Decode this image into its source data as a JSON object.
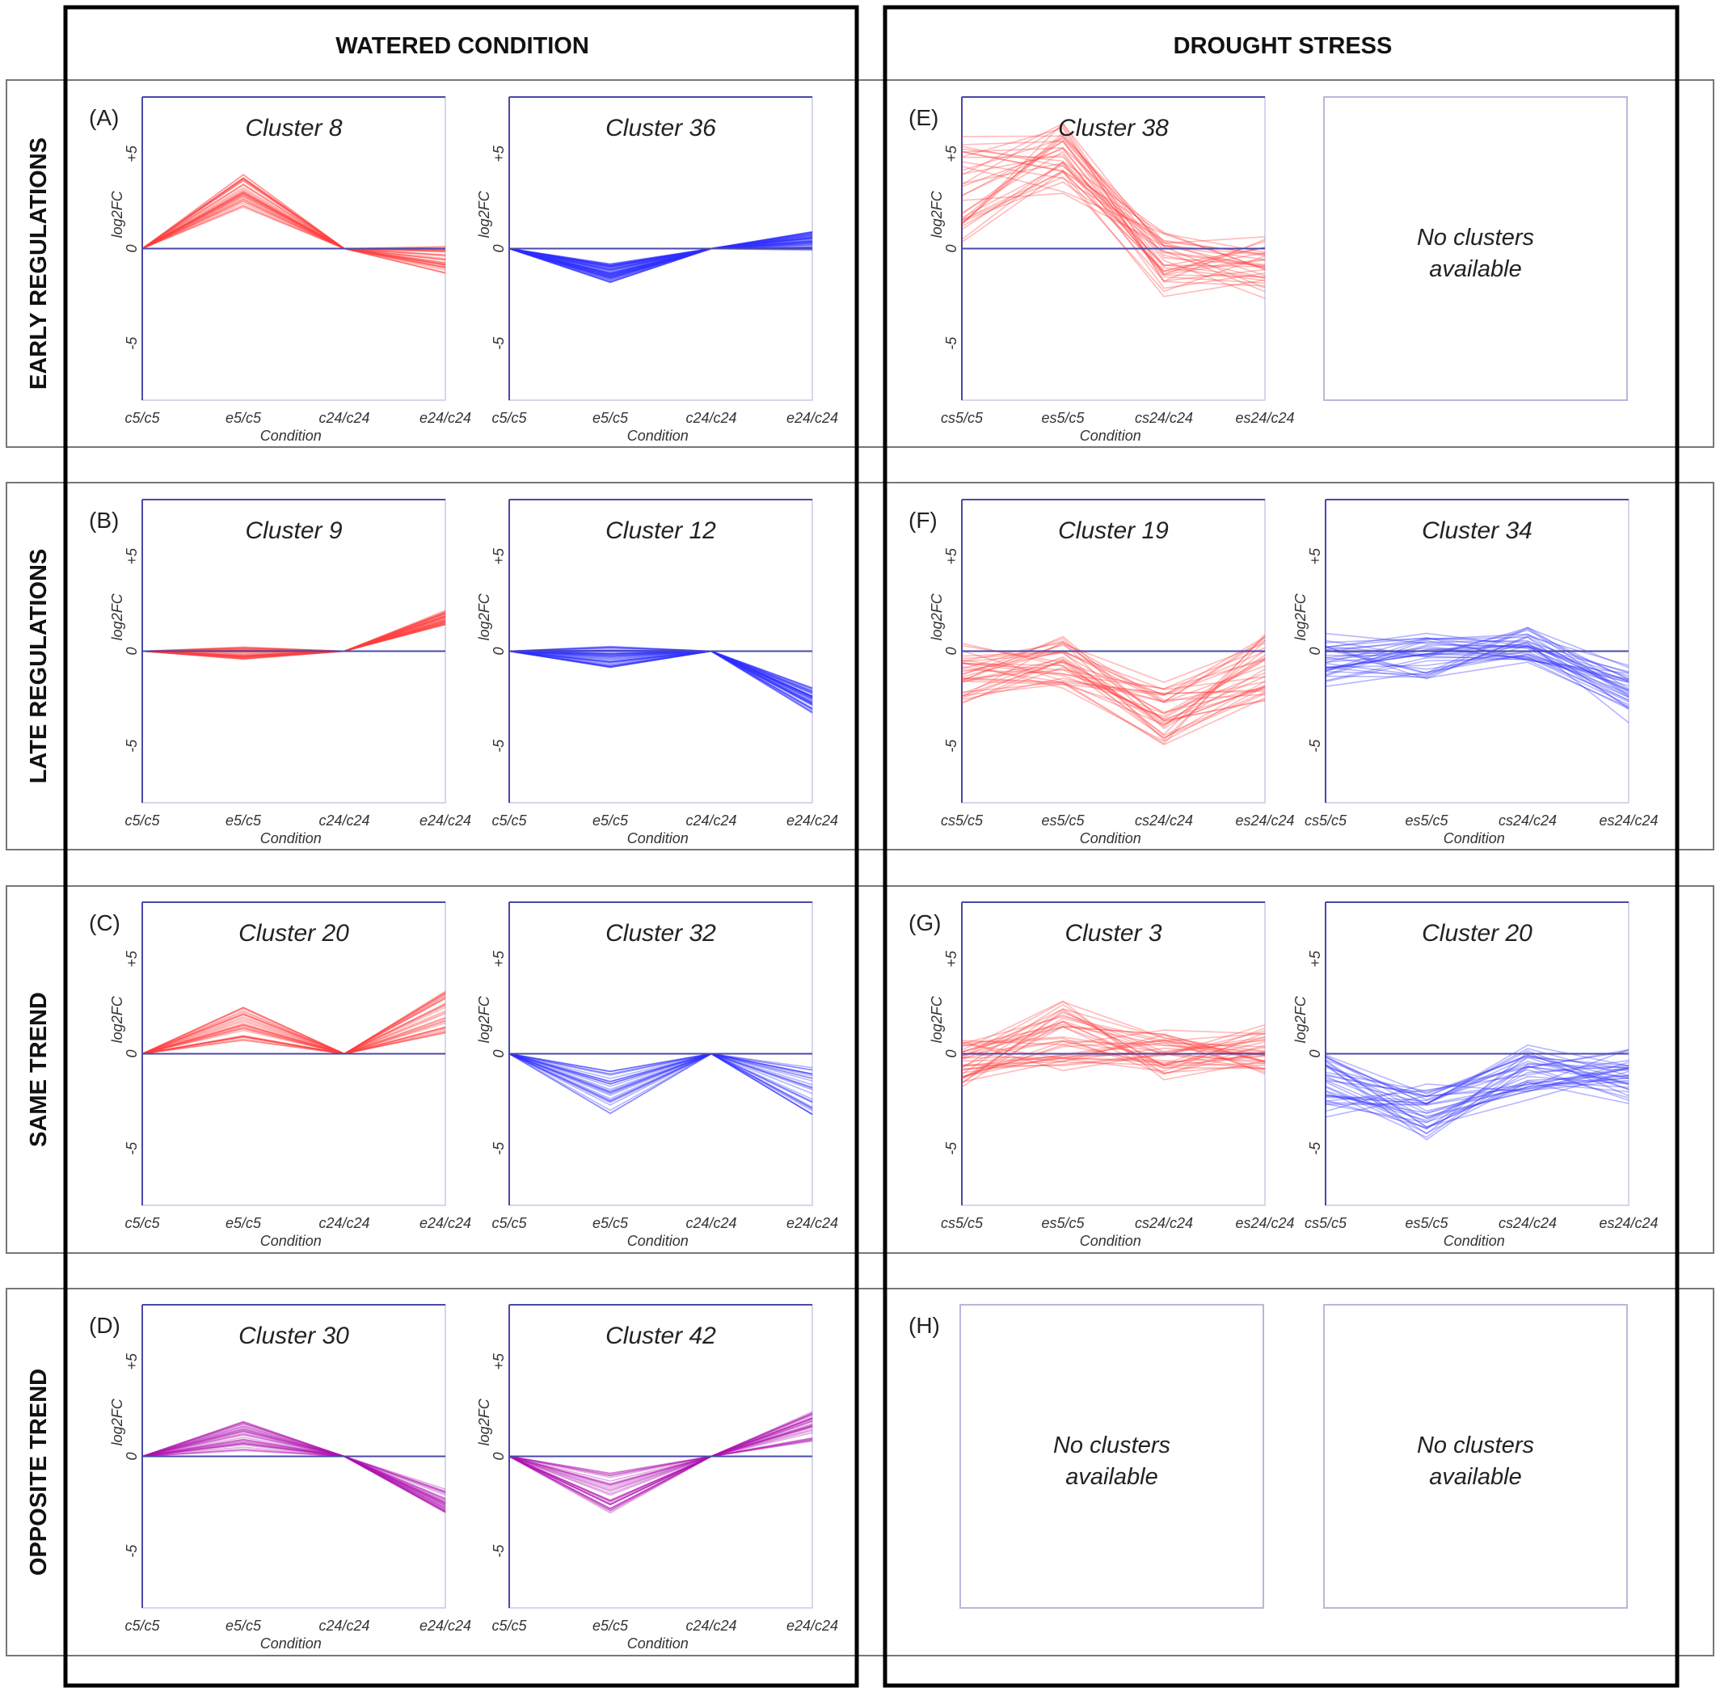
{
  "columns": [
    "WATERED CONDITION",
    "DROUGHT STRESS"
  ],
  "rows": [
    "EARLY REGULATIONS",
    "LATE REGULATIONS",
    "SAME TREND",
    "OPPOSITE TREND"
  ],
  "no_clusters_text": [
    "No clusters",
    "available"
  ],
  "y_axis_label": "log2FC",
  "x_axis_label": "Condition",
  "y_ticks": [
    "+5",
    "0",
    "-5"
  ],
  "colors": {
    "up": "#ff3b3b",
    "down": "#2f2fff",
    "mixed": "#b012b0",
    "axis": "#4a48a8",
    "frame": "#000000"
  },
  "chart_data": [
    {
      "type": "line",
      "letter": "(A)",
      "title": "Cluster 8",
      "categories": [
        "c5/c5",
        "e5/c5",
        "c24/c24",
        "e24/c24"
      ],
      "ylim": [
        -8,
        8
      ],
      "color": "up",
      "center": [
        0,
        3.0,
        0,
        -0.6
      ],
      "spread": [
        0,
        1.0,
        0,
        0.7
      ],
      "n": 36,
      "noise": 0,
      "ylabel": "log2FC",
      "xlabel": "Condition"
    },
    {
      "type": "line",
      "letter": "",
      "title": "Cluster 36",
      "categories": [
        "c5/c5",
        "e5/c5",
        "c24/c24",
        "e24/c24"
      ],
      "ylim": [
        -8,
        8
      ],
      "color": "down",
      "center": [
        0,
        -1.3,
        0,
        0.4
      ],
      "spread": [
        0,
        0.5,
        0,
        0.5
      ],
      "n": 60,
      "noise": 0,
      "ylabel": "log2FC",
      "xlabel": "Condition"
    },
    {
      "type": "line",
      "letter": "(E)",
      "title": "Cluster 38",
      "categories": [
        "cs5/c5",
        "es5/c5",
        "cs24/c24",
        "es24/c24"
      ],
      "ylim": [
        -8,
        8
      ],
      "color": "up",
      "center": [
        3.0,
        4.8,
        -0.8,
        -1.0
      ],
      "spread": [
        2.6,
        1.8,
        1.6,
        1.5
      ],
      "n": 34,
      "noise": 1,
      "ylabel": "log2FC",
      "xlabel": "Condition"
    },
    {
      "type": "line",
      "letter": "",
      "title": "",
      "categories": [],
      "ylim": [
        -8,
        8
      ],
      "color": "up",
      "center": [],
      "spread": [],
      "n": 0,
      "noise": 0,
      "empty": true
    },
    {
      "type": "line",
      "letter": "(B)",
      "title": "Cluster 9",
      "categories": [
        "c5/c5",
        "e5/c5",
        "c24/c24",
        "e24/c24"
      ],
      "ylim": [
        -8,
        8
      ],
      "color": "up",
      "center": [
        0,
        -0.1,
        0,
        1.8
      ],
      "spread": [
        0,
        0.35,
        0,
        0.4
      ],
      "n": 40,
      "noise": 0,
      "ylabel": "log2FC",
      "xlabel": "Condition"
    },
    {
      "type": "line",
      "letter": "",
      "title": "Cluster 12",
      "categories": [
        "c5/c5",
        "e5/c5",
        "c24/c24",
        "e24/c24"
      ],
      "ylim": [
        -8,
        8
      ],
      "color": "down",
      "center": [
        0,
        -0.3,
        0,
        -2.6
      ],
      "spread": [
        0,
        0.6,
        0,
        0.7
      ],
      "n": 48,
      "noise": 0,
      "ylabel": "log2FC",
      "xlabel": "Condition"
    },
    {
      "type": "line",
      "letter": "(F)",
      "title": "Cluster 19",
      "categories": [
        "cs5/c5",
        "es5/c5",
        "cs24/c24",
        "es24/c24"
      ],
      "ylim": [
        -8,
        8
      ],
      "color": "up",
      "center": [
        -1.2,
        -0.5,
        -3.5,
        -0.8
      ],
      "spread": [
        1.5,
        1.2,
        1.6,
        1.6
      ],
      "n": 36,
      "noise": 1,
      "ylabel": "log2FC",
      "xlabel": "Condition"
    },
    {
      "type": "line",
      "letter": "",
      "title": "Cluster 34",
      "categories": [
        "cs5/c5",
        "es5/c5",
        "cs24/c24",
        "es24/c24"
      ],
      "ylim": [
        -8,
        8
      ],
      "color": "down",
      "center": [
        -0.6,
        -0.2,
        0.2,
        -2.2
      ],
      "spread": [
        1.3,
        1.1,
        0.9,
        1.2
      ],
      "n": 34,
      "noise": 1,
      "ylabel": "log2FC",
      "xlabel": "Condition"
    },
    {
      "type": "line",
      "letter": "(C)",
      "title": "Cluster 20",
      "categories": [
        "c5/c5",
        "e5/c5",
        "c24/c24",
        "e24/c24"
      ],
      "ylim": [
        -8,
        8
      ],
      "color": "up",
      "center": [
        0,
        1.6,
        0,
        2.2
      ],
      "spread": [
        0,
        0.9,
        0,
        1.1
      ],
      "n": 34,
      "noise": 0,
      "ylabel": "log2FC",
      "xlabel": "Condition"
    },
    {
      "type": "line",
      "letter": "",
      "title": "Cluster 32",
      "categories": [
        "c5/c5",
        "e5/c5",
        "c24/c24",
        "e24/c24"
      ],
      "ylim": [
        -8,
        8
      ],
      "color": "down",
      "center": [
        0,
        -2.0,
        0,
        -2.0
      ],
      "spread": [
        0,
        1.2,
        0,
        1.3
      ],
      "n": 30,
      "noise": 0,
      "ylabel": "log2FC",
      "xlabel": "Condition"
    },
    {
      "type": "line",
      "letter": "(G)",
      "title": "Cluster 3",
      "categories": [
        "cs5/c5",
        "es5/c5",
        "cs24/c24",
        "es24/c24"
      ],
      "ylim": [
        -8,
        8
      ],
      "color": "up",
      "center": [
        -0.5,
        1.0,
        0,
        0.2
      ],
      "spread": [
        1.2,
        1.6,
        1.1,
        1.1
      ],
      "n": 40,
      "noise": 1,
      "ylabel": "log2FC",
      "xlabel": "Condition"
    },
    {
      "type": "line",
      "letter": "",
      "title": "Cluster 20",
      "categories": [
        "cs5/c5",
        "es5/c5",
        "cs24/c24",
        "es24/c24"
      ],
      "ylim": [
        -8,
        8
      ],
      "color": "down",
      "center": [
        -1.5,
        -3.2,
        -1.0,
        -1.2
      ],
      "spread": [
        1.5,
        1.3,
        1.2,
        1.3
      ],
      "n": 36,
      "noise": 1,
      "ylabel": "log2FC",
      "xlabel": "Condition"
    },
    {
      "type": "line",
      "letter": "(D)",
      "title": "Cluster 30",
      "categories": [
        "c5/c5",
        "e5/c5",
        "c24/c24",
        "e24/c24"
      ],
      "ylim": [
        -8,
        8
      ],
      "color": "mixed",
      "center": [
        0,
        1.1,
        0,
        -2.4
      ],
      "spread": [
        0,
        0.9,
        0,
        0.7
      ],
      "n": 34,
      "noise": 0,
      "ylabel": "log2FC",
      "xlabel": "Condition"
    },
    {
      "type": "line",
      "letter": "",
      "title": "Cluster 42",
      "categories": [
        "c5/c5",
        "e5/c5",
        "c24/c24",
        "e24/c24"
      ],
      "ylim": [
        -8,
        8
      ],
      "color": "mixed",
      "center": [
        0,
        -2.0,
        0,
        1.6
      ],
      "spread": [
        0,
        1.2,
        0,
        0.8
      ],
      "n": 34,
      "noise": 0,
      "ylabel": "log2FC",
      "xlabel": "Condition"
    },
    {
      "type": "line",
      "letter": "(H)",
      "title": "",
      "categories": [],
      "ylim": [
        -8,
        8
      ],
      "color": "up",
      "center": [],
      "spread": [],
      "n": 0,
      "noise": 0,
      "empty": true
    },
    {
      "type": "line",
      "letter": "",
      "title": "",
      "categories": [],
      "ylim": [
        -8,
        8
      ],
      "color": "up",
      "center": [],
      "spread": [],
      "n": 0,
      "noise": 0,
      "empty": true
    }
  ]
}
